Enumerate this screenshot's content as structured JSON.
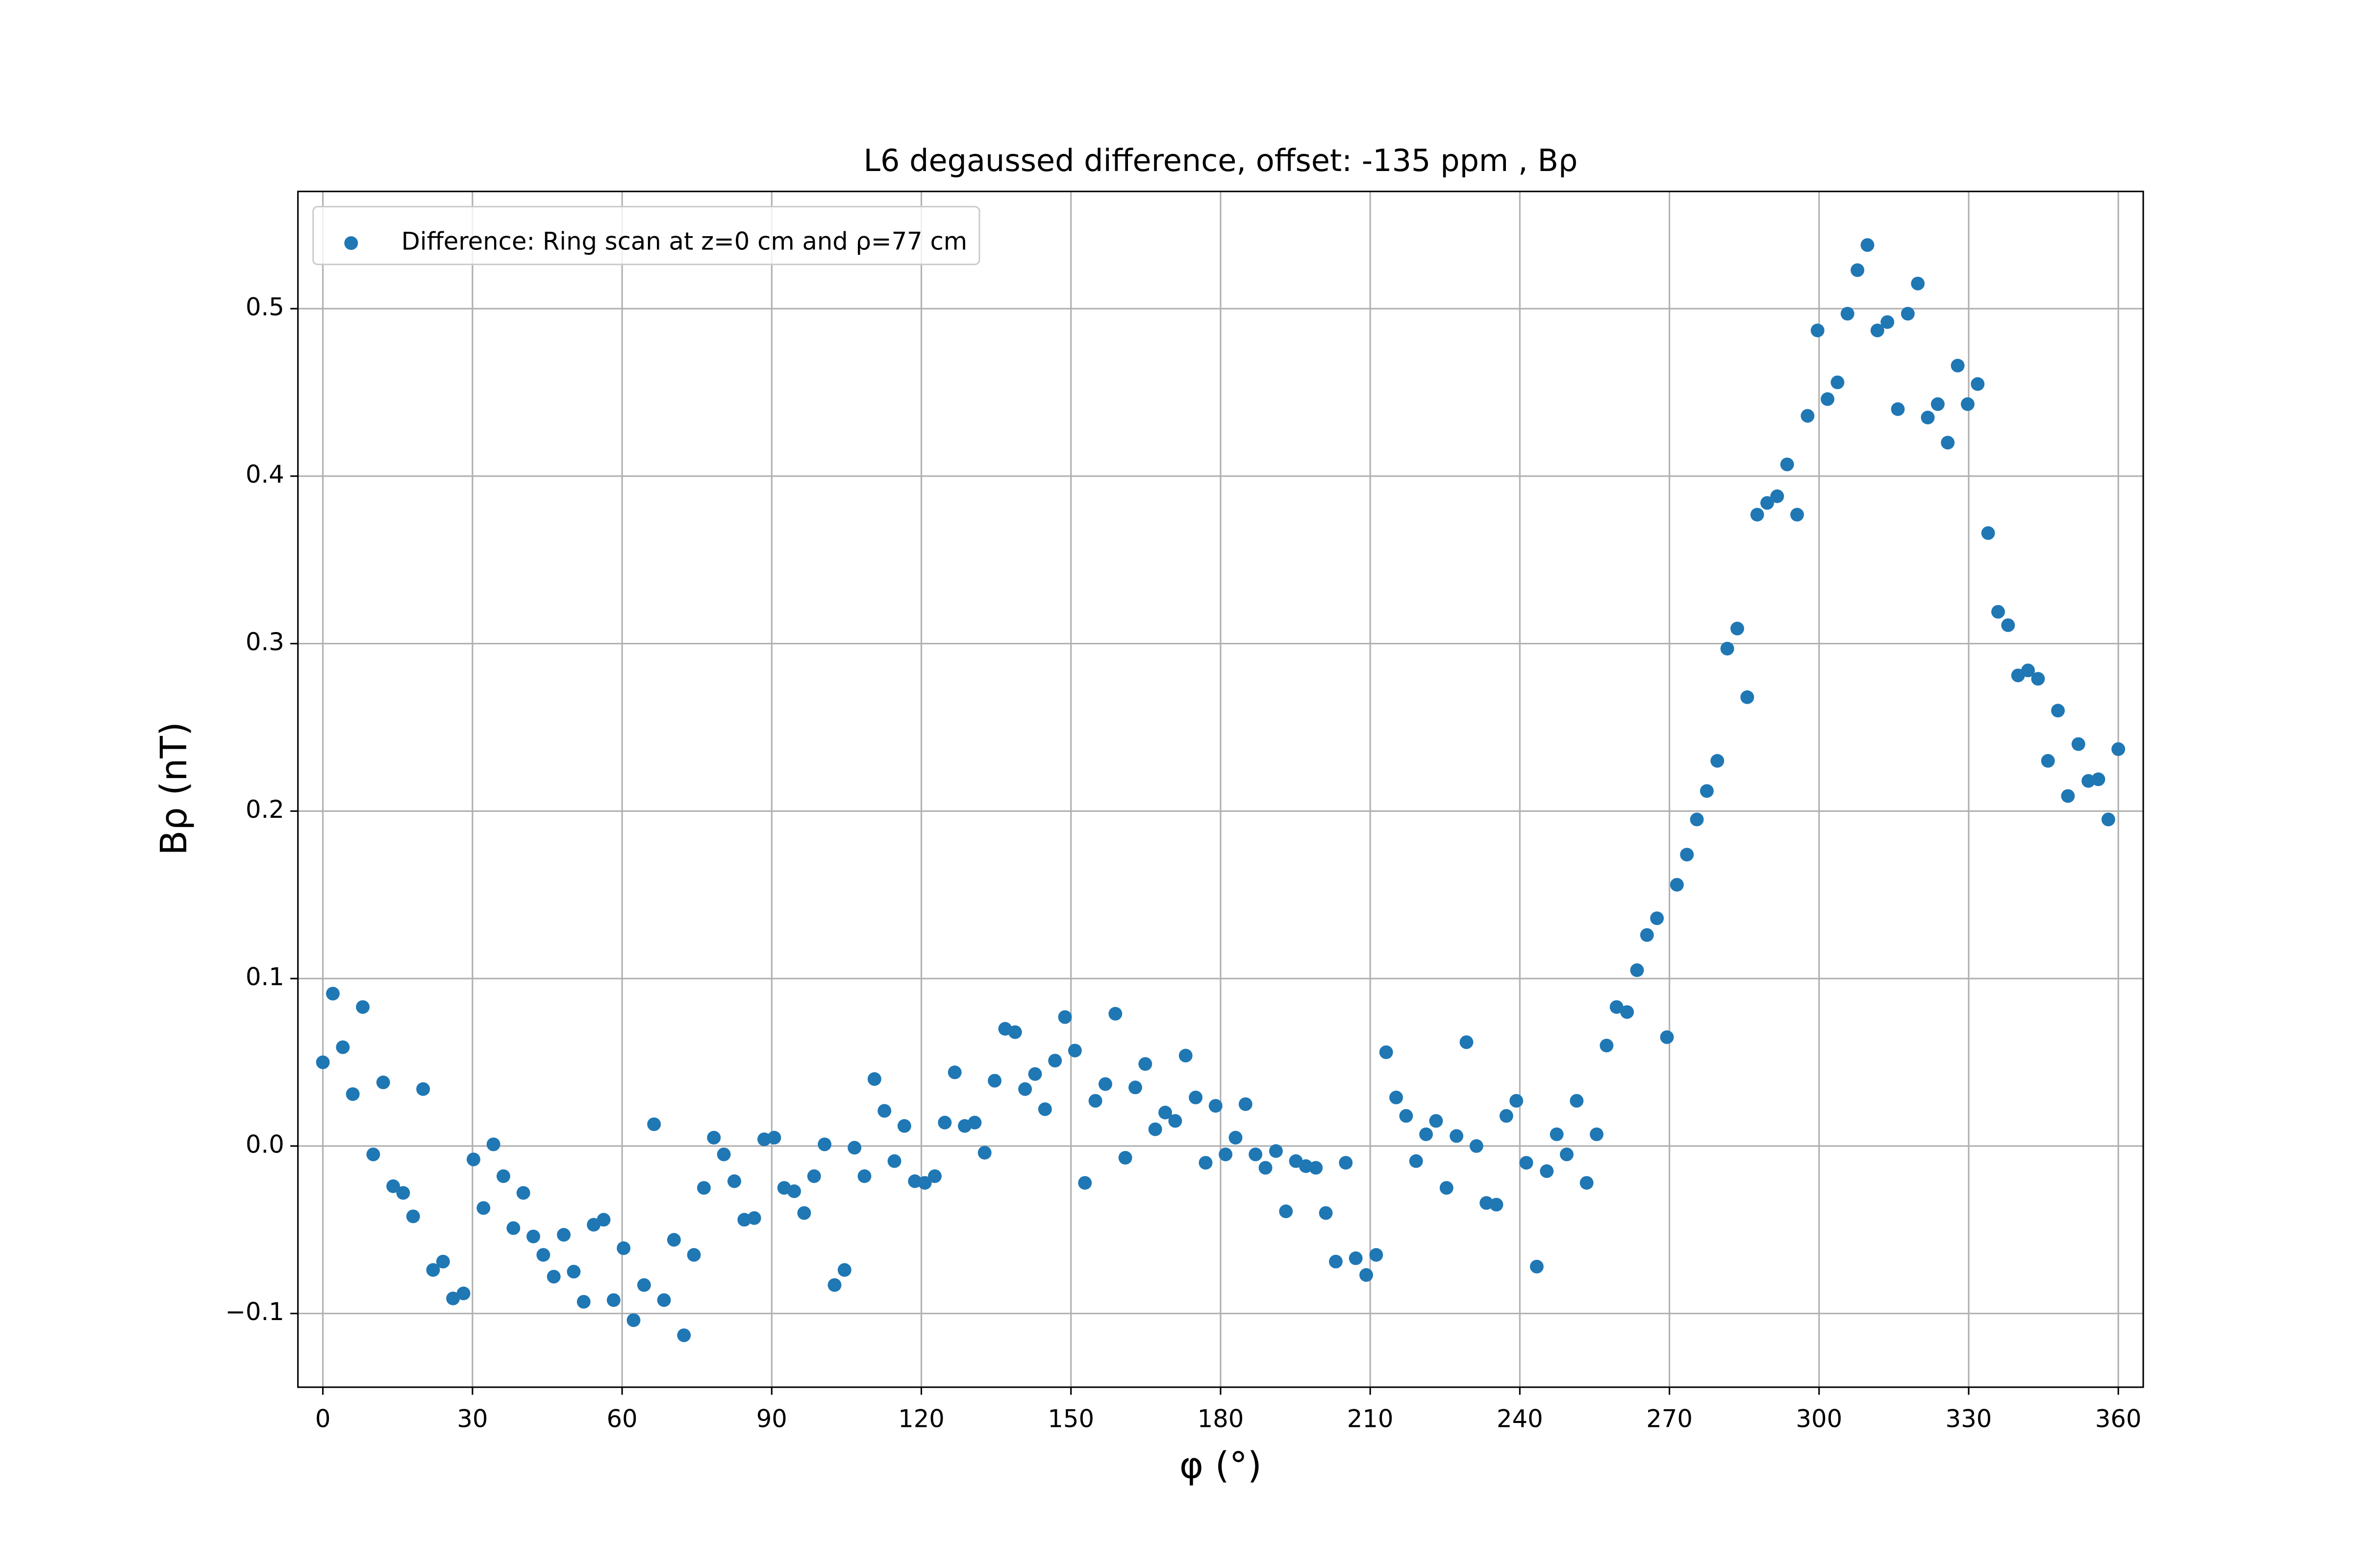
{
  "chart_data": {
    "type": "scatter",
    "title": "L6 degaussed difference, offset: -135 ppm , Bρ",
    "xlabel": "φ (°)",
    "ylabel": "Bρ (nT)",
    "legend": "upper left",
    "grid": true,
    "xlim": [
      -5,
      365
    ],
    "ylim": [
      -0.144,
      0.57
    ],
    "xticks": [
      0,
      30,
      60,
      90,
      120,
      150,
      180,
      210,
      240,
      270,
      300,
      330,
      360
    ],
    "yticks": [
      {
        "value": -0.1,
        "label": "−0.1"
      },
      {
        "value": 0,
        "label": "0.0"
      },
      0.1,
      0.2,
      0.3,
      0.4,
      0.5
    ],
    "series": [
      {
        "name": "Difference: Ring scan at z=0 cm and ρ=77 cm",
        "color": "#1f77b4",
        "x": [
          0,
          2,
          4,
          6,
          8,
          10.1,
          12.1,
          14.1,
          16.1,
          18.1,
          20.1,
          22.1,
          24.1,
          26.1,
          28.2,
          30.2,
          32.2,
          34.2,
          36.2,
          38.2,
          40.2,
          42.2,
          44.2,
          46.3,
          48.3,
          50.3,
          52.3,
          54.3,
          56.3,
          58.3,
          60.3,
          62.3,
          64.4,
          66.4,
          68.4,
          70.4,
          72.4,
          74.4,
          76.4,
          78.4,
          80.4,
          82.5,
          84.5,
          86.5,
          88.5,
          90.5,
          92.5,
          94.5,
          96.5,
          98.5,
          100.6,
          102.6,
          104.6,
          106.6,
          108.6,
          110.6,
          112.6,
          114.6,
          116.6,
          118.7,
          120.7,
          122.7,
          124.7,
          126.7,
          128.7,
          130.7,
          132.7,
          134.7,
          136.8,
          138.8,
          140.8,
          142.8,
          144.8,
          146.8,
          148.8,
          150.8,
          152.8,
          154.9,
          156.9,
          158.9,
          160.9,
          162.9,
          164.9,
          166.9,
          168.9,
          170.9,
          173,
          175,
          177,
          179,
          181,
          183,
          185,
          187,
          189,
          191.1,
          193.1,
          195.1,
          197.1,
          199.1,
          201.1,
          203.1,
          205.1,
          207.1,
          209.2,
          211.2,
          213.2,
          215.2,
          217.2,
          219.2,
          221.2,
          223.2,
          225.3,
          227.3,
          229.3,
          231.3,
          233.3,
          235.3,
          237.3,
          239.3,
          241.3,
          243.4,
          245.4,
          247.4,
          249.4,
          251.4,
          253.4,
          255.4,
          257.4,
          259.4,
          261.5,
          263.5,
          265.5,
          267.5,
          269.5,
          271.5,
          273.5,
          275.5,
          277.5,
          279.6,
          281.6,
          283.6,
          285.6,
          287.6,
          289.6,
          291.6,
          293.6,
          295.6,
          297.7,
          299.7,
          301.7,
          303.7,
          305.7,
          307.7,
          309.7,
          311.7,
          313.7,
          315.8,
          317.8,
          319.8,
          321.8,
          323.8,
          325.8,
          327.8,
          329.8,
          331.8,
          333.9,
          335.9,
          337.9,
          339.9,
          341.9,
          343.9,
          345.9,
          347.9,
          349.9,
          352,
          354,
          356,
          358,
          360
        ],
        "values": [
          0.05,
          0.091,
          0.059,
          0.031,
          0.083,
          -0.005,
          0.038,
          -0.024,
          -0.028,
          -0.042,
          0.034,
          -0.074,
          -0.069,
          -0.091,
          -0.088,
          -0.008,
          -0.037,
          0.001,
          -0.018,
          -0.049,
          -0.028,
          -0.054,
          -0.065,
          -0.078,
          -0.053,
          -0.075,
          -0.093,
          -0.047,
          -0.044,
          -0.092,
          -0.061,
          -0.104,
          -0.083,
          0.013,
          -0.092,
          -0.056,
          -0.113,
          -0.065,
          -0.025,
          0.005,
          -0.005,
          -0.021,
          -0.044,
          -0.043,
          0.004,
          0.005,
          -0.025,
          -0.027,
          -0.04,
          -0.018,
          0.001,
          -0.083,
          -0.074,
          -0.001,
          -0.018,
          0.04,
          0.021,
          -0.009,
          0.012,
          -0.021,
          -0.022,
          -0.018,
          0.014,
          0.044,
          0.012,
          0.014,
          -0.004,
          0.039,
          0.07,
          0.068,
          0.034,
          0.043,
          0.022,
          0.051,
          0.077,
          0.057,
          -0.022,
          0.027,
          0.037,
          0.079,
          -0.007,
          0.035,
          0.049,
          0.01,
          0.02,
          0.015,
          0.054,
          0.029,
          -0.01,
          0.024,
          -0.005,
          0.005,
          0.025,
          -0.005,
          -0.013,
          -0.003,
          -0.039,
          -0.009,
          -0.012,
          -0.013,
          -0.04,
          -0.069,
          -0.01,
          -0.067,
          -0.077,
          -0.065,
          0.056,
          0.029,
          0.018,
          -0.009,
          0.007,
          0.015,
          -0.025,
          0.006,
          0.062,
          0.0,
          -0.034,
          -0.035,
          0.018,
          0.027,
          -0.01,
          -0.072,
          -0.015,
          0.007,
          -0.005,
          0.027,
          -0.022,
          0.007,
          0.06,
          0.083,
          0.08,
          0.105,
          0.126,
          0.136,
          0.065,
          0.156,
          0.174,
          0.195,
          0.212,
          0.23,
          0.297,
          0.309,
          0.268,
          0.377,
          0.384,
          0.388,
          0.407,
          0.377,
          0.436,
          0.487,
          0.446,
          0.456,
          0.497,
          0.523,
          0.538,
          0.487,
          0.492,
          0.44,
          0.497,
          0.515,
          0.435,
          0.443,
          0.42,
          0.466,
          0.443,
          0.455,
          0.366,
          0.319,
          0.311,
          0.281,
          0.284,
          0.279,
          0.23,
          0.26,
          0.209,
          0.24,
          0.218,
          0.219,
          0.195,
          0.237
        ]
      }
    ]
  }
}
